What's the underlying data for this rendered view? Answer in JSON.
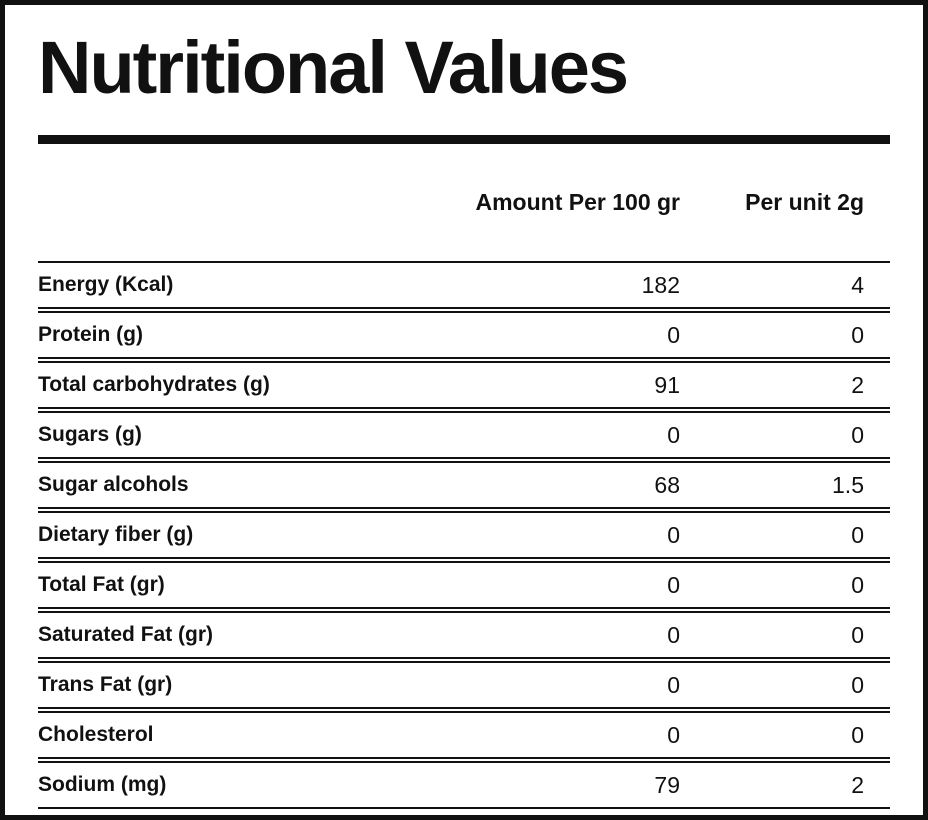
{
  "title": "Nutritional Values",
  "colors": {
    "ink": "#111111",
    "background": "#ffffff"
  },
  "table": {
    "columns": [
      "Amount Per 100 gr",
      "Per unit 2g"
    ],
    "rows": [
      {
        "label": "Energy (Kcal)",
        "per100": "182",
        "perUnit": "4"
      },
      {
        "label": "Protein (g)",
        "per100": "0",
        "perUnit": "0"
      },
      {
        "label": "Total carbohydrates (g)",
        "per100": "91",
        "perUnit": "2"
      },
      {
        "label": "Sugars (g)",
        "per100": "0",
        "perUnit": "0"
      },
      {
        "label": "Sugar alcohols",
        "per100": "68",
        "perUnit": "1.5"
      },
      {
        "label": "Dietary fiber (g)",
        "per100": "0",
        "perUnit": "0"
      },
      {
        "label": "Total Fat (gr)",
        "per100": "0",
        "perUnit": "0"
      },
      {
        "label": "Saturated Fat (gr)",
        "per100": "0",
        "perUnit": "0"
      },
      {
        "label": "Trans Fat (gr)",
        "per100": "0",
        "perUnit": "0"
      },
      {
        "label": "Cholesterol",
        "per100": "0",
        "perUnit": "0"
      },
      {
        "label": "Sodium (mg)",
        "per100": "79",
        "perUnit": "2"
      }
    ]
  }
}
